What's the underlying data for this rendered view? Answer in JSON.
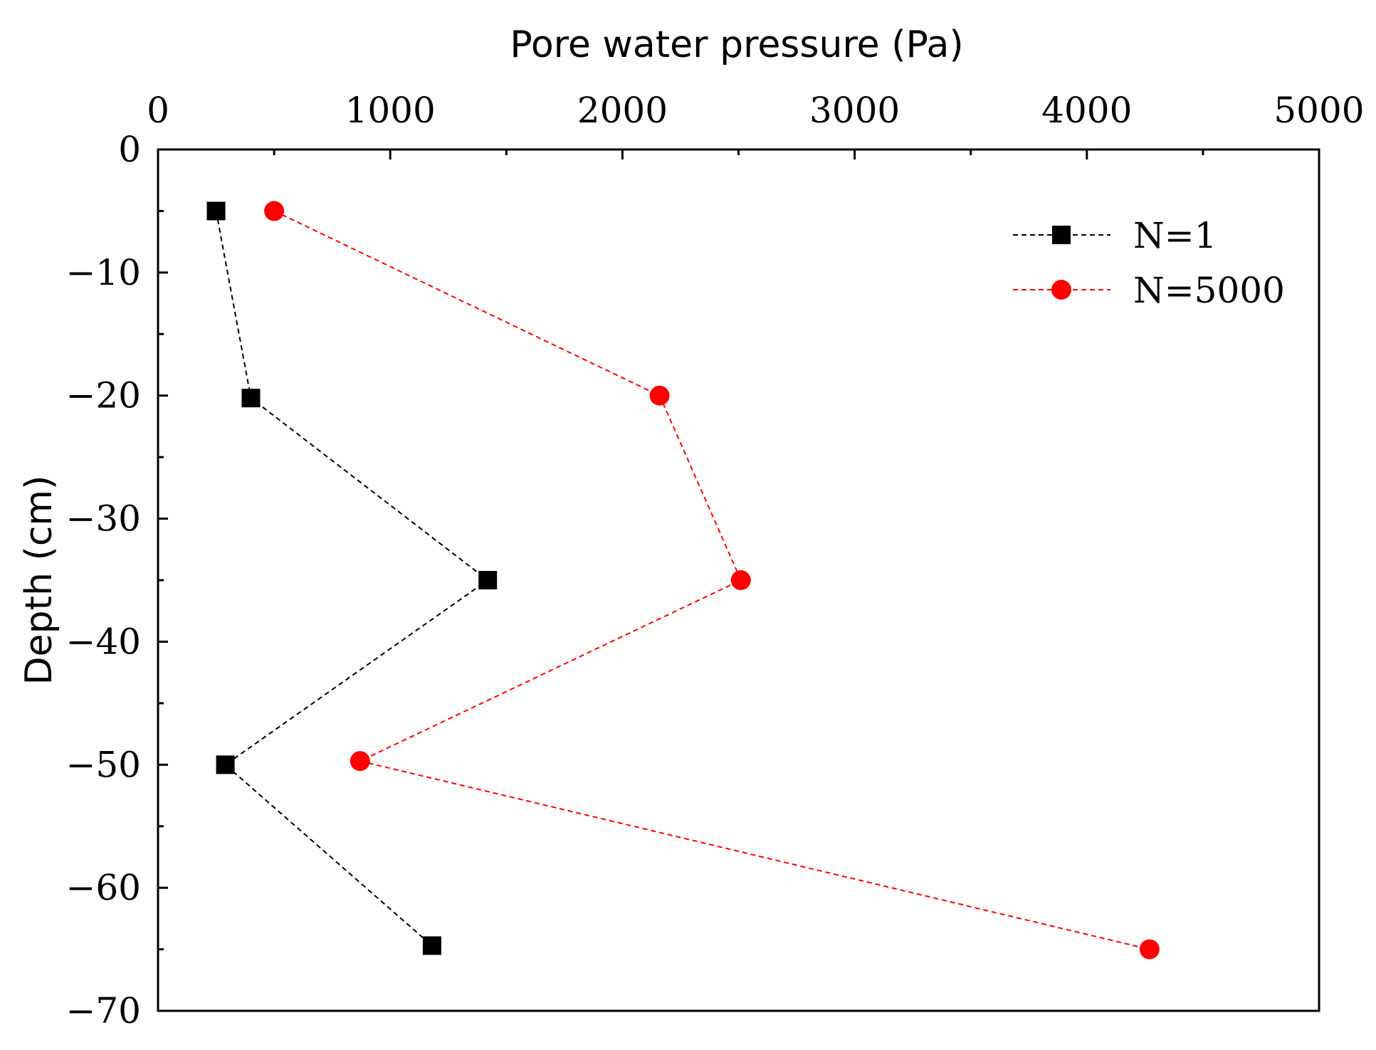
{
  "chart_data": {
    "type": "line",
    "x_axis_position": "top",
    "y_axis_position": "left",
    "xlabel": "Pore water pressure (Pa)",
    "ylabel": "Depth (cm)",
    "xlim": [
      0,
      5000
    ],
    "ylim": [
      -70,
      0
    ],
    "x_ticks": [
      0,
      1000,
      2000,
      3000,
      4000,
      5000
    ],
    "x_tick_labels": [
      "0",
      "1000",
      "2000",
      "3000",
      "4000",
      "5000"
    ],
    "y_ticks": [
      0,
      -10,
      -20,
      -30,
      -40,
      -50,
      -60,
      -70
    ],
    "y_tick_labels": [
      "0",
      "−10",
      "−20",
      "−30",
      "−40",
      "−50",
      "−60",
      "−70"
    ],
    "grid": false,
    "legend_position": "top-right",
    "series": [
      {
        "name": "N=1",
        "color": "#000000",
        "marker": "square",
        "line_style": "dashed",
        "x": [
          250,
          400,
          1420,
          290,
          1180
        ],
        "y": [
          -5,
          -20.2,
          -35,
          -50,
          -64.7
        ]
      },
      {
        "name": "N=5000",
        "color": "#ff0000",
        "marker": "circle",
        "line_style": "dashed",
        "x": [
          500,
          2160,
          2510,
          870,
          4270
        ],
        "y": [
          -5,
          -20,
          -35,
          -49.7,
          -65
        ]
      }
    ]
  }
}
